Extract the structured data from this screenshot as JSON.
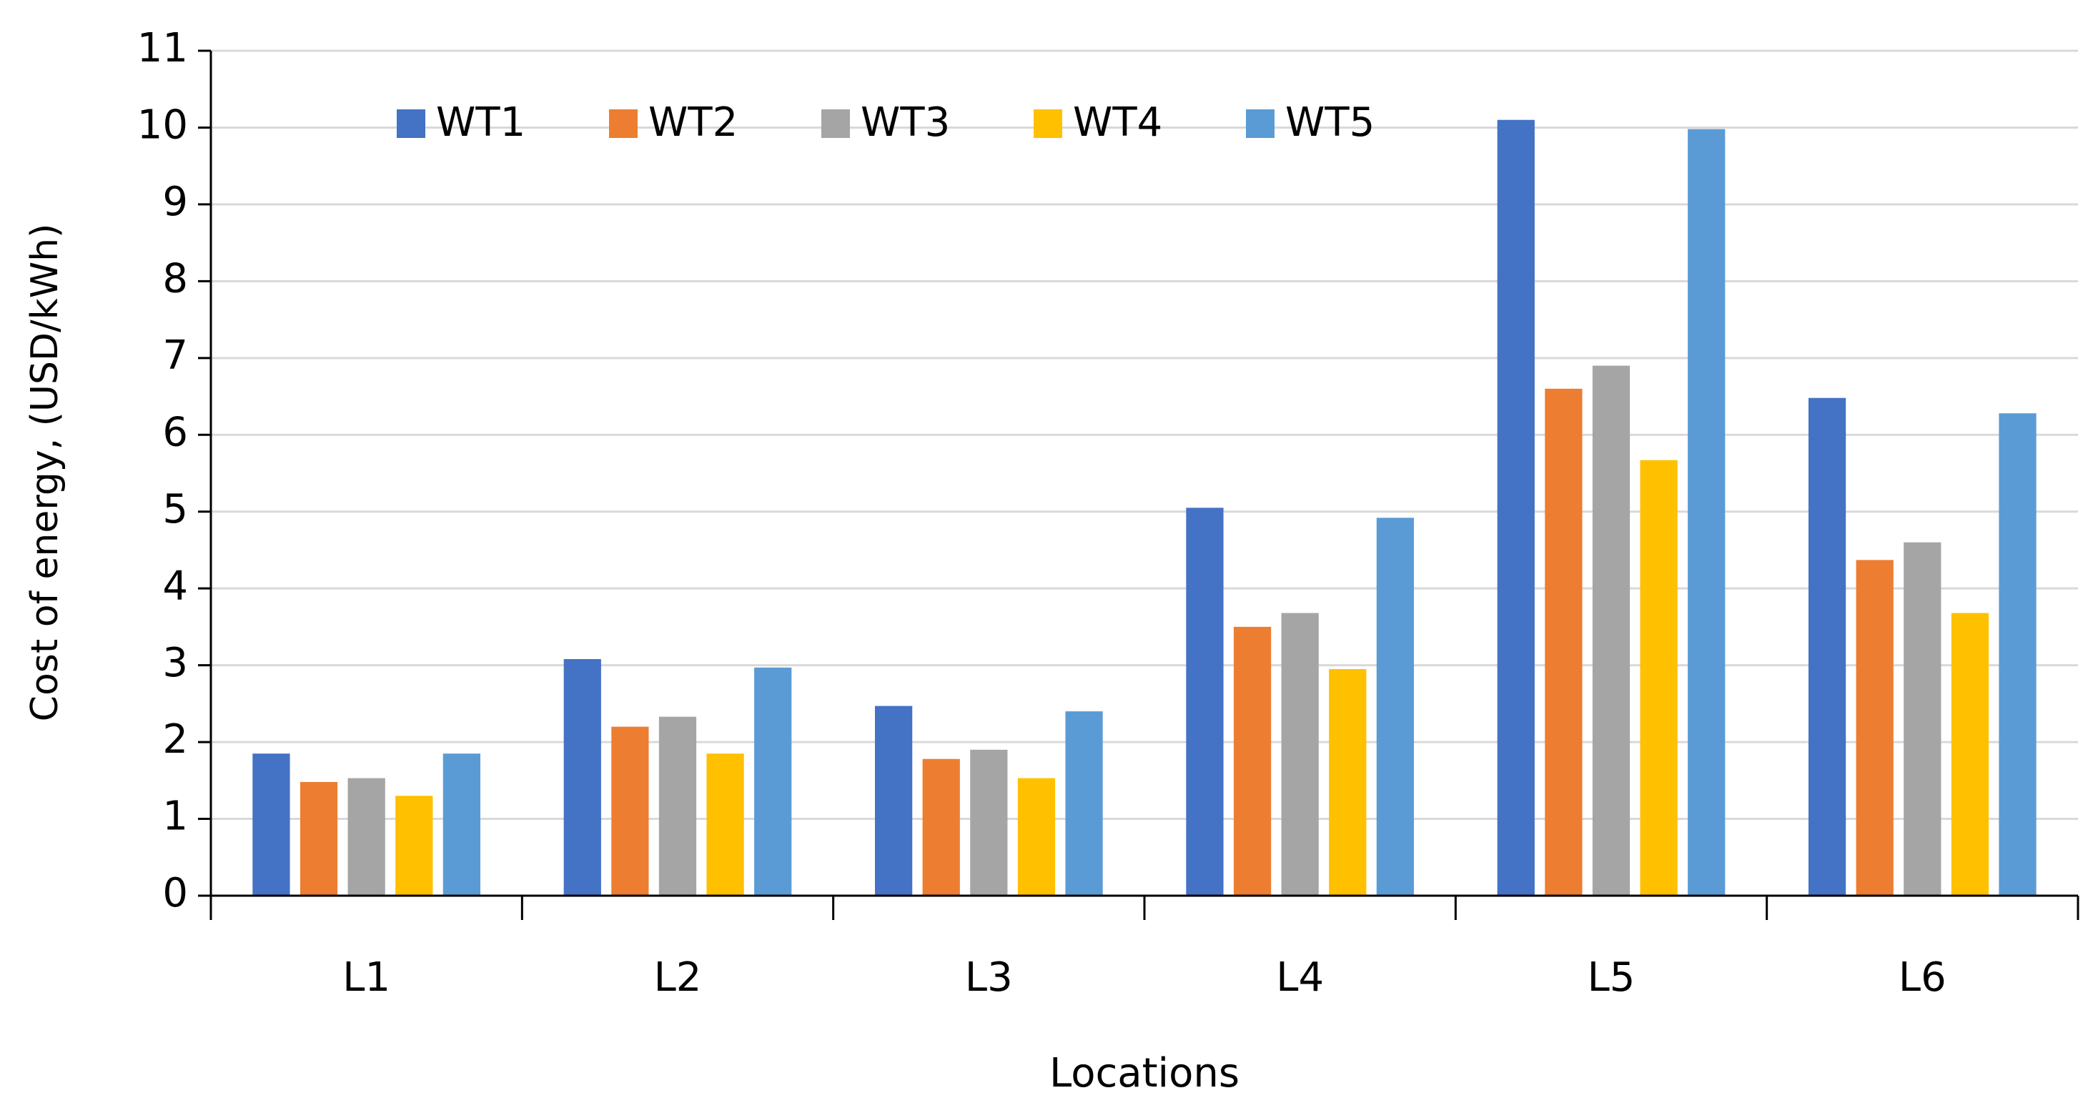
{
  "chart_data": {
    "type": "bar",
    "x_label": "Locations",
    "y_label": "Cost of energy, (USD/kWh)",
    "categories": [
      "L1",
      "L2",
      "L3",
      "L4",
      "L5",
      "L6"
    ],
    "series": [
      {
        "name": "WT1",
        "color": "#4472c4",
        "values": [
          1.85,
          3.08,
          2.47,
          5.05,
          10.1,
          6.48
        ]
      },
      {
        "name": "WT2",
        "color": "#ed7d31",
        "values": [
          1.48,
          2.2,
          1.78,
          3.5,
          6.6,
          4.37
        ]
      },
      {
        "name": "WT3",
        "color": "#a5a5a5",
        "values": [
          1.53,
          2.33,
          1.9,
          3.68,
          6.9,
          4.6
        ]
      },
      {
        "name": "WT4",
        "color": "#ffc000",
        "values": [
          1.3,
          1.85,
          1.53,
          2.95,
          5.67,
          3.68
        ]
      },
      {
        "name": "WT5",
        "color": "#5b9bd5",
        "values": [
          1.85,
          2.97,
          2.4,
          4.92,
          9.98,
          6.28
        ]
      }
    ],
    "ylim": [
      0,
      11
    ],
    "yticks": [
      0,
      1,
      2,
      3,
      4,
      5,
      6,
      7,
      8,
      9,
      10,
      11
    ],
    "grid": true,
    "legend": "top-left"
  }
}
